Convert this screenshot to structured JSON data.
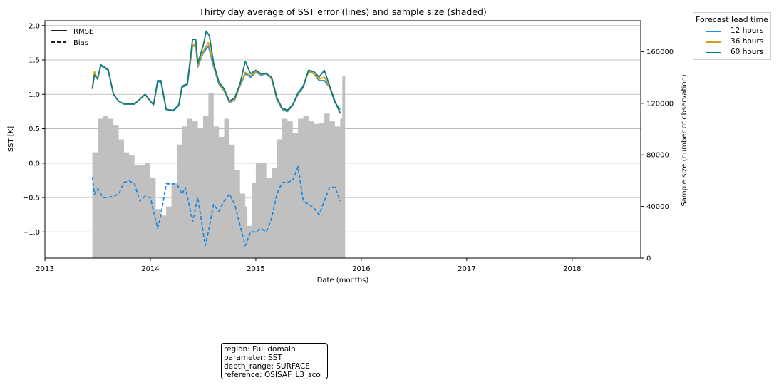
{
  "chart_data": {
    "type": "line",
    "title": "Thirty day average of SST error (lines) and sample size (shaded)",
    "xlabel": "Date (months)",
    "ylabel": "SST [K]",
    "y2label": "Sample size (number of observation)",
    "xlim": [
      2013.0,
      2018.65
    ],
    "ylim": [
      -1.38,
      2.07
    ],
    "y2lim": [
      0,
      184000
    ],
    "x_ticks": [
      2013,
      2014,
      2015,
      2016,
      2017,
      2018
    ],
    "y_ticks": [
      -1.0,
      -0.5,
      0.0,
      0.5,
      1.0,
      1.5,
      2.0
    ],
    "y2_ticks": [
      0,
      40000,
      80000,
      120000,
      160000
    ],
    "grid": "horizontal",
    "style_legend": {
      "entries": [
        {
          "label": "RMSE",
          "linestyle": "solid"
        },
        {
          "label": "Bias",
          "linestyle": "dashed"
        }
      ],
      "placement": "top-left"
    },
    "legend": {
      "title": "Forecast lead time",
      "placement": "outside-right",
      "entries": [
        {
          "label": "12 hours",
          "color": "#1f88e0"
        },
        {
          "label": "36 hours",
          "color": "#d4a017"
        },
        {
          "label": "60 hours",
          "color": "#0d7a7a"
        }
      ]
    },
    "sample_size": {
      "color": "#c0c0c0",
      "points": [
        [
          2013.45,
          82000
        ],
        [
          2013.5,
          108000
        ],
        [
          2013.55,
          110000
        ],
        [
          2013.6,
          108000
        ],
        [
          2013.65,
          103000
        ],
        [
          2013.7,
          92000
        ],
        [
          2013.75,
          82000
        ],
        [
          2013.8,
          80000
        ],
        [
          2013.85,
          72000
        ],
        [
          2013.9,
          72000
        ],
        [
          2013.95,
          74000
        ],
        [
          2014.0,
          62000
        ],
        [
          2014.05,
          38000
        ],
        [
          2014.1,
          33000
        ],
        [
          2014.15,
          40000
        ],
        [
          2014.2,
          58000
        ],
        [
          2014.25,
          88000
        ],
        [
          2014.3,
          102000
        ],
        [
          2014.35,
          108000
        ],
        [
          2014.4,
          106000
        ],
        [
          2014.45,
          100000
        ],
        [
          2014.5,
          110000
        ],
        [
          2014.55,
          128000
        ],
        [
          2014.6,
          102000
        ],
        [
          2014.65,
          94000
        ],
        [
          2014.7,
          108000
        ],
        [
          2014.75,
          88000
        ],
        [
          2014.8,
          68000
        ],
        [
          2014.85,
          50000
        ],
        [
          2014.9,
          40000
        ],
        [
          2014.92,
          25000
        ],
        [
          2014.96,
          58000
        ],
        [
          2015.0,
          74000
        ],
        [
          2015.05,
          74000
        ],
        [
          2015.1,
          62000
        ],
        [
          2015.15,
          70000
        ],
        [
          2015.2,
          92000
        ],
        [
          2015.25,
          108000
        ],
        [
          2015.3,
          106000
        ],
        [
          2015.35,
          97000
        ],
        [
          2015.4,
          108000
        ],
        [
          2015.45,
          110000
        ],
        [
          2015.5,
          106000
        ],
        [
          2015.55,
          104000
        ],
        [
          2015.6,
          105000
        ],
        [
          2015.65,
          112000
        ],
        [
          2015.7,
          106000
        ],
        [
          2015.75,
          102000
        ],
        [
          2015.8,
          108000
        ],
        [
          2015.82,
          141000
        ]
      ]
    },
    "series": [
      {
        "name": "12 hours",
        "metric": "RMSE",
        "color": "#1f88e0",
        "linestyle": "solid",
        "points": [
          [
            2013.45,
            1.1
          ],
          [
            2013.47,
            1.3
          ],
          [
            2013.5,
            1.22
          ],
          [
            2013.53,
            1.42
          ],
          [
            2013.6,
            1.35
          ],
          [
            2013.65,
            1.0
          ],
          [
            2013.7,
            0.9
          ],
          [
            2013.75,
            0.86
          ],
          [
            2013.85,
            0.86
          ],
          [
            2013.95,
            1.0
          ],
          [
            2014.0,
            0.9
          ],
          [
            2014.03,
            0.85
          ],
          [
            2014.07,
            1.18
          ],
          [
            2014.1,
            1.18
          ],
          [
            2014.15,
            0.78
          ],
          [
            2014.22,
            0.76
          ],
          [
            2014.27,
            0.84
          ],
          [
            2014.3,
            1.1
          ],
          [
            2014.35,
            1.14
          ],
          [
            2014.4,
            1.7
          ],
          [
            2014.43,
            1.7
          ],
          [
            2014.45,
            1.4
          ],
          [
            2014.5,
            1.6
          ],
          [
            2014.55,
            1.7
          ],
          [
            2014.6,
            1.4
          ],
          [
            2014.65,
            1.15
          ],
          [
            2014.7,
            1.05
          ],
          [
            2014.75,
            0.88
          ],
          [
            2014.8,
            0.92
          ],
          [
            2014.85,
            1.12
          ],
          [
            2014.9,
            1.3
          ],
          [
            2014.95,
            1.25
          ],
          [
            2015.0,
            1.32
          ],
          [
            2015.05,
            1.28
          ],
          [
            2015.1,
            1.3
          ],
          [
            2015.15,
            1.22
          ],
          [
            2015.2,
            0.92
          ],
          [
            2015.25,
            0.78
          ],
          [
            2015.3,
            0.75
          ],
          [
            2015.35,
            0.84
          ],
          [
            2015.4,
            1.0
          ],
          [
            2015.45,
            1.1
          ],
          [
            2015.5,
            1.35
          ],
          [
            2015.55,
            1.3
          ],
          [
            2015.6,
            1.2
          ],
          [
            2015.65,
            1.2
          ],
          [
            2015.7,
            1.1
          ],
          [
            2015.75,
            0.88
          ],
          [
            2015.8,
            0.78
          ]
        ]
      },
      {
        "name": "36 hours",
        "metric": "RMSE",
        "color": "#d4a017",
        "linestyle": "solid",
        "points": [
          [
            2013.45,
            1.1
          ],
          [
            2013.47,
            1.33
          ],
          [
            2013.5,
            1.22
          ],
          [
            2013.53,
            1.43
          ],
          [
            2013.6,
            1.36
          ],
          [
            2013.65,
            1.0
          ],
          [
            2013.7,
            0.9
          ],
          [
            2013.75,
            0.86
          ],
          [
            2013.85,
            0.86
          ],
          [
            2013.95,
            1.0
          ],
          [
            2014.0,
            0.9
          ],
          [
            2014.03,
            0.85
          ],
          [
            2014.07,
            1.2
          ],
          [
            2014.1,
            1.2
          ],
          [
            2014.15,
            0.78
          ],
          [
            2014.22,
            0.77
          ],
          [
            2014.27,
            0.85
          ],
          [
            2014.3,
            1.12
          ],
          [
            2014.35,
            1.15
          ],
          [
            2014.4,
            1.72
          ],
          [
            2014.43,
            1.72
          ],
          [
            2014.45,
            1.42
          ],
          [
            2014.5,
            1.62
          ],
          [
            2014.55,
            1.75
          ],
          [
            2014.6,
            1.42
          ],
          [
            2014.65,
            1.16
          ],
          [
            2014.7,
            1.06
          ],
          [
            2014.75,
            0.89
          ],
          [
            2014.8,
            0.93
          ],
          [
            2014.85,
            1.13
          ],
          [
            2014.9,
            1.32
          ],
          [
            2014.95,
            1.27
          ],
          [
            2015.0,
            1.33
          ],
          [
            2015.05,
            1.29
          ],
          [
            2015.1,
            1.31
          ],
          [
            2015.15,
            1.23
          ],
          [
            2015.2,
            0.93
          ],
          [
            2015.25,
            0.79
          ],
          [
            2015.3,
            0.76
          ],
          [
            2015.35,
            0.85
          ],
          [
            2015.4,
            1.01
          ],
          [
            2015.45,
            1.12
          ],
          [
            2015.5,
            1.33
          ],
          [
            2015.55,
            1.3
          ],
          [
            2015.6,
            1.22
          ],
          [
            2015.65,
            1.25
          ],
          [
            2015.7,
            1.1
          ],
          [
            2015.75,
            0.9
          ],
          [
            2015.8,
            0.72
          ]
        ]
      },
      {
        "name": "60 hours",
        "metric": "RMSE",
        "color": "#0d7a7a",
        "linestyle": "solid",
        "points": [
          [
            2013.45,
            1.08
          ],
          [
            2013.47,
            1.28
          ],
          [
            2013.5,
            1.22
          ],
          [
            2013.53,
            1.43
          ],
          [
            2013.6,
            1.36
          ],
          [
            2013.65,
            1.0
          ],
          [
            2013.7,
            0.9
          ],
          [
            2013.75,
            0.86
          ],
          [
            2013.85,
            0.86
          ],
          [
            2013.95,
            1.0
          ],
          [
            2014.0,
            0.9
          ],
          [
            2014.03,
            0.85
          ],
          [
            2014.07,
            1.2
          ],
          [
            2014.1,
            1.2
          ],
          [
            2014.15,
            0.78
          ],
          [
            2014.22,
            0.77
          ],
          [
            2014.27,
            0.85
          ],
          [
            2014.3,
            1.12
          ],
          [
            2014.35,
            1.15
          ],
          [
            2014.4,
            1.8
          ],
          [
            2014.43,
            1.8
          ],
          [
            2014.45,
            1.45
          ],
          [
            2014.5,
            1.7
          ],
          [
            2014.53,
            1.92
          ],
          [
            2014.56,
            1.85
          ],
          [
            2014.6,
            1.45
          ],
          [
            2014.65,
            1.18
          ],
          [
            2014.7,
            1.08
          ],
          [
            2014.75,
            0.9
          ],
          [
            2014.8,
            0.95
          ],
          [
            2014.85,
            1.15
          ],
          [
            2014.9,
            1.48
          ],
          [
            2014.95,
            1.3
          ],
          [
            2015.0,
            1.35
          ],
          [
            2015.05,
            1.3
          ],
          [
            2015.1,
            1.3
          ],
          [
            2015.15,
            1.25
          ],
          [
            2015.2,
            0.95
          ],
          [
            2015.25,
            0.8
          ],
          [
            2015.3,
            0.77
          ],
          [
            2015.35,
            0.85
          ],
          [
            2015.4,
            1.02
          ],
          [
            2015.45,
            1.12
          ],
          [
            2015.5,
            1.35
          ],
          [
            2015.55,
            1.33
          ],
          [
            2015.6,
            1.25
          ],
          [
            2015.65,
            1.35
          ],
          [
            2015.7,
            1.12
          ],
          [
            2015.75,
            0.9
          ],
          [
            2015.8,
            0.73
          ]
        ]
      },
      {
        "name": "12 hours",
        "metric": "Bias",
        "color": "#1f88e0",
        "linestyle": "dashed",
        "points": [
          [
            2013.45,
            -0.2
          ],
          [
            2013.47,
            -0.45
          ],
          [
            2013.5,
            -0.37
          ],
          [
            2013.55,
            -0.5
          ],
          [
            2013.6,
            -0.5
          ],
          [
            2013.65,
            -0.48
          ],
          [
            2013.7,
            -0.45
          ],
          [
            2013.75,
            -0.28
          ],
          [
            2013.8,
            -0.26
          ],
          [
            2013.85,
            -0.3
          ],
          [
            2013.9,
            -0.55
          ],
          [
            2013.95,
            -0.48
          ],
          [
            2014.0,
            -0.5
          ],
          [
            2014.03,
            -0.7
          ],
          [
            2014.07,
            -0.95
          ],
          [
            2014.1,
            -0.75
          ],
          [
            2014.15,
            -0.3
          ],
          [
            2014.2,
            -0.3
          ],
          [
            2014.25,
            -0.3
          ],
          [
            2014.3,
            -0.45
          ],
          [
            2014.33,
            -0.35
          ],
          [
            2014.36,
            -0.55
          ],
          [
            2014.4,
            -0.85
          ],
          [
            2014.45,
            -0.5
          ],
          [
            2014.48,
            -0.8
          ],
          [
            2014.52,
            -1.2
          ],
          [
            2014.55,
            -1.0
          ],
          [
            2014.6,
            -0.6
          ],
          [
            2014.65,
            -0.7
          ],
          [
            2014.7,
            -0.55
          ],
          [
            2014.75,
            -0.45
          ],
          [
            2014.8,
            -0.6
          ],
          [
            2014.85,
            -0.9
          ],
          [
            2014.9,
            -1.2
          ],
          [
            2014.95,
            -1.0
          ],
          [
            2015.0,
            -1.0
          ],
          [
            2015.05,
            -0.95
          ],
          [
            2015.1,
            -1.0
          ],
          [
            2015.15,
            -0.8
          ],
          [
            2015.2,
            -0.45
          ],
          [
            2015.25,
            -0.28
          ],
          [
            2015.3,
            -0.28
          ],
          [
            2015.35,
            -0.25
          ],
          [
            2015.4,
            -0.05
          ],
          [
            2015.45,
            -0.55
          ],
          [
            2015.5,
            -0.6
          ],
          [
            2015.55,
            -0.65
          ],
          [
            2015.6,
            -0.75
          ],
          [
            2015.65,
            -0.55
          ],
          [
            2015.7,
            -0.35
          ],
          [
            2015.75,
            -0.35
          ],
          [
            2015.8,
            -0.55
          ]
        ]
      }
    ]
  },
  "info_box": [
    "region: Full domain",
    "parameter: SST",
    "depth_range: SURFACE",
    "reference: OSISAF_L3_sco"
  ]
}
